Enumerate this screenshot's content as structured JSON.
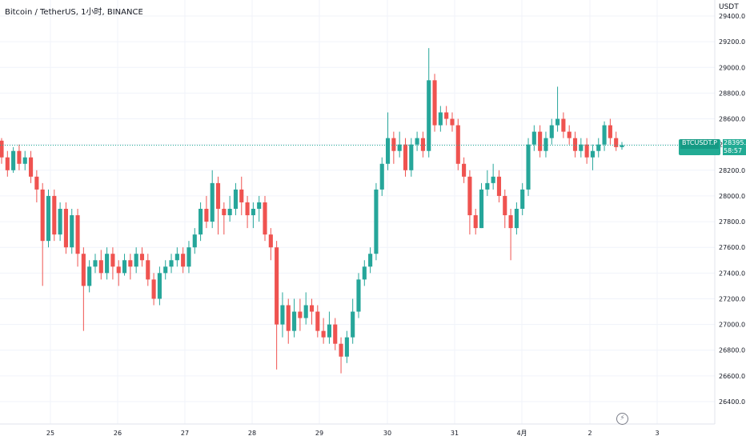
{
  "header": {
    "legend": "Bitcoin / TetherUS, 1小时, BINANCE"
  },
  "price_axis": {
    "unit": "USDT",
    "labels": [
      "29400.0",
      "29200.0",
      "29000.0",
      "28800.0",
      "28600.0",
      "28400.0",
      "28200.0",
      "28000.0",
      "27800.0",
      "27600.0",
      "27400.0",
      "27200.0",
      "27000.0",
      "26800.0",
      "26600.0",
      "26400.0"
    ]
  },
  "time_axis": {
    "labels": [
      "25",
      "26",
      "27",
      "28",
      "29",
      "30",
      "31",
      "4月",
      "2",
      "3"
    ]
  },
  "current_price": {
    "symbol": "BTCUSDT.P",
    "price": "28395.2",
    "countdown": "58:57"
  },
  "icons": {
    "replay": "lightning-icon"
  },
  "colors": {
    "up": "#26a69a",
    "down": "#ef5350",
    "price_line": "#22ab94",
    "grid": "#f0f3fa"
  },
  "chart_data": {
    "type": "candlestick",
    "title": "Bitcoin / TetherUS, 1小时, BINANCE",
    "ylabel": "USDT",
    "ylim": [
      26300,
      29500
    ],
    "grid": true,
    "x_ticks": [
      "25",
      "26",
      "27",
      "28",
      "29",
      "30",
      "31",
      "4月",
      "2",
      "3"
    ],
    "last_price": 28395.2,
    "candles": [
      [
        28430,
        28300,
        28450,
        28250
      ],
      [
        28300,
        28200,
        28350,
        28150
      ],
      [
        28200,
        28350,
        28380,
        28180
      ],
      [
        28350,
        28250,
        28400,
        28200
      ],
      [
        28250,
        28300,
        28350,
        28200
      ],
      [
        28300,
        28150,
        28350,
        28100
      ],
      [
        28150,
        28050,
        28200,
        27950
      ],
      [
        28050,
        27650,
        28100,
        27300
      ],
      [
        27650,
        28000,
        28050,
        27600
      ],
      [
        28000,
        27700,
        28050,
        27650
      ],
      [
        27700,
        27900,
        27950,
        27650
      ],
      [
        27900,
        27600,
        27950,
        27550
      ],
      [
        27600,
        27850,
        27900,
        27550
      ],
      [
        27850,
        27550,
        27900,
        27450
      ],
      [
        27550,
        27300,
        27600,
        26950
      ],
      [
        27300,
        27450,
        27500,
        27250
      ],
      [
        27450,
        27500,
        27550,
        27400
      ],
      [
        27500,
        27400,
        27580,
        27350
      ],
      [
        27400,
        27550,
        27600,
        27350
      ],
      [
        27550,
        27450,
        27600,
        27350
      ],
      [
        27450,
        27400,
        27500,
        27300
      ],
      [
        27400,
        27500,
        27550,
        27380
      ],
      [
        27500,
        27450,
        27550,
        27350
      ],
      [
        27450,
        27550,
        27600,
        27400
      ],
      [
        27550,
        27500,
        27600,
        27450
      ],
      [
        27500,
        27350,
        27550,
        27300
      ],
      [
        27350,
        27200,
        27400,
        27150
      ],
      [
        27200,
        27400,
        27450,
        27150
      ],
      [
        27400,
        27450,
        27500,
        27350
      ],
      [
        27450,
        27500,
        27550,
        27400
      ],
      [
        27500,
        27550,
        27600,
        27450
      ],
      [
        27550,
        27450,
        27600,
        27400
      ],
      [
        27450,
        27600,
        27650,
        27400
      ],
      [
        27600,
        27700,
        27750,
        27550
      ],
      [
        27700,
        27900,
        27950,
        27650
      ],
      [
        27900,
        27800,
        28000,
        27750
      ],
      [
        27800,
        28100,
        28200,
        27750
      ],
      [
        28100,
        27900,
        28150,
        27700
      ],
      [
        27900,
        27850,
        27950,
        27700
      ],
      [
        27850,
        27900,
        28000,
        27800
      ],
      [
        27900,
        28050,
        28100,
        27850
      ],
      [
        28050,
        27950,
        28150,
        27850
      ],
      [
        27950,
        27850,
        28000,
        27750
      ],
      [
        27850,
        27900,
        27950,
        27750
      ],
      [
        27900,
        27950,
        28000,
        27800
      ],
      [
        27950,
        27700,
        28000,
        27650
      ],
      [
        27700,
        27600,
        27750,
        27500
      ],
      [
        27600,
        27000,
        27650,
        26650
      ],
      [
        27000,
        27150,
        27250,
        26900
      ],
      [
        27150,
        26950,
        27200,
        26850
      ],
      [
        26950,
        27100,
        27200,
        26900
      ],
      [
        27100,
        27050,
        27200,
        26950
      ],
      [
        27050,
        27150,
        27250,
        27000
      ],
      [
        27150,
        27100,
        27200,
        27000
      ],
      [
        27100,
        26950,
        27150,
        26900
      ],
      [
        26950,
        26900,
        27050,
        26850
      ],
      [
        26900,
        27000,
        27100,
        26850
      ],
      [
        27000,
        26850,
        27050,
        26800
      ],
      [
        26850,
        26750,
        26900,
        26620
      ],
      [
        26750,
        26900,
        26950,
        26700
      ],
      [
        26900,
        27100,
        27200,
        26850
      ],
      [
        27100,
        27350,
        27400,
        27050
      ],
      [
        27350,
        27450,
        27500,
        27300
      ],
      [
        27450,
        27550,
        27600,
        27400
      ],
      [
        27550,
        28050,
        28100,
        27500
      ],
      [
        28050,
        28250,
        28300,
        28000
      ],
      [
        28250,
        28450,
        28650,
        28200
      ],
      [
        28450,
        28350,
        28500,
        28250
      ],
      [
        28350,
        28400,
        28500,
        28300
      ],
      [
        28400,
        28200,
        28450,
        28150
      ],
      [
        28200,
        28400,
        28450,
        28150
      ],
      [
        28400,
        28450,
        28500,
        28350
      ],
      [
        28450,
        28350,
        28500,
        28300
      ],
      [
        28350,
        28900,
        29150,
        28300
      ],
      [
        28900,
        28550,
        28950,
        28500
      ],
      [
        28550,
        28650,
        28700,
        28500
      ],
      [
        28650,
        28600,
        28700,
        28550
      ],
      [
        28600,
        28550,
        28650,
        28500
      ],
      [
        28550,
        28250,
        28600,
        28200
      ],
      [
        28250,
        28150,
        28300,
        28100
      ],
      [
        28150,
        27850,
        28200,
        27700
      ],
      [
        27850,
        27750,
        27900,
        27700
      ],
      [
        27750,
        28050,
        28100,
        27750
      ],
      [
        28050,
        28100,
        28200,
        28000
      ],
      [
        28100,
        28150,
        28250,
        28050
      ],
      [
        28150,
        28000,
        28200,
        27950
      ],
      [
        28000,
        27850,
        28050,
        27750
      ],
      [
        27850,
        27750,
        27900,
        27500
      ],
      [
        27750,
        27900,
        27950,
        27700
      ],
      [
        27900,
        28050,
        28100,
        27850
      ],
      [
        28050,
        28400,
        28450,
        28000
      ],
      [
        28400,
        28500,
        28550,
        28350
      ],
      [
        28500,
        28350,
        28550,
        28300
      ],
      [
        28350,
        28450,
        28500,
        28300
      ],
      [
        28450,
        28550,
        28600,
        28400
      ],
      [
        28550,
        28600,
        28850,
        28500
      ],
      [
        28600,
        28500,
        28650,
        28450
      ],
      [
        28500,
        28450,
        28550,
        28400
      ],
      [
        28450,
        28350,
        28500,
        28300
      ],
      [
        28350,
        28400,
        28450,
        28300
      ],
      [
        28400,
        28300,
        28450,
        28250
      ],
      [
        28300,
        28350,
        28400,
        28200
      ],
      [
        28350,
        28400,
        28450,
        28300
      ],
      [
        28400,
        28550,
        28580,
        28350
      ],
      [
        28550,
        28450,
        28600,
        28400
      ],
      [
        28450,
        28380,
        28500,
        28350
      ],
      [
        28380,
        28395,
        28420,
        28360
      ]
    ]
  }
}
